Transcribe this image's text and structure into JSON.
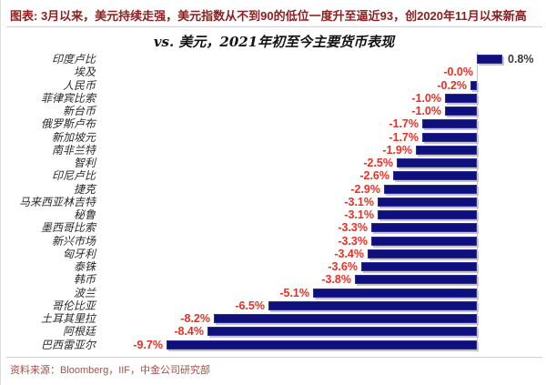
{
  "header": {
    "text": "图表: 3月以来，美元持续走强，美元指数从不到90的低位一度升至逼近93，创2020年11月以来新高"
  },
  "title": "vs. 美元，2021年初至今主要货币表现",
  "source": "资料来源：Bloomberg，IIF，中金公司研究部",
  "colors": {
    "bar": "#10107d",
    "bar_border": "#2e2e96",
    "negative_label": "#ee2d23",
    "positive_label": "#3a3a3a",
    "caption": "#8e2020",
    "source_text": "#a0524a",
    "axis_line": "#c4c4c4"
  },
  "chart_data": {
    "type": "bar",
    "orientation": "horizontal",
    "title": "vs. 美元，2021年初至今主要货币表现",
    "xlabel": "",
    "ylabel": "",
    "xlim": [
      -10.5,
      2
    ],
    "grid": false,
    "legend": false,
    "value_unit": "%",
    "categories": [
      "印度卢比",
      "埃及",
      "人民币",
      "菲律宾比索",
      "新台币",
      "俄罗斯卢布",
      "新加坡元",
      "南非兰特",
      "智利",
      "印尼卢比",
      "捷克",
      "马来西亚林吉特",
      "秘鲁",
      "墨西哥比索",
      "新兴市场",
      "匈牙利",
      "泰铢",
      "韩币",
      "波兰",
      "哥伦比亚",
      "土耳其里拉",
      "阿根廷",
      "巴西雷亚尔"
    ],
    "values": [
      0.8,
      -0.0,
      -0.2,
      -1.0,
      -1.0,
      -1.7,
      -1.7,
      -1.9,
      -2.5,
      -2.6,
      -2.9,
      -3.1,
      -3.1,
      -3.3,
      -3.3,
      -3.4,
      -3.6,
      -3.8,
      -5.1,
      -6.5,
      -8.2,
      -8.4,
      -9.7
    ],
    "display_labels": [
      "0.8%",
      "-0.0%",
      "-0.2%",
      "-1.0%",
      "-1.0%",
      "-1.7%",
      "-1.7%",
      "-1.9%",
      "-2.5%",
      "-2.6%",
      "-2.9%",
      "-3.1%",
      "-3.1%",
      "-3.3%",
      "-3.3%",
      "-3.4%",
      "-3.6%",
      "-3.8%",
      "-5.1%",
      "-6.5%",
      "-8.2%",
      "-8.4%",
      "-9.7%"
    ]
  }
}
